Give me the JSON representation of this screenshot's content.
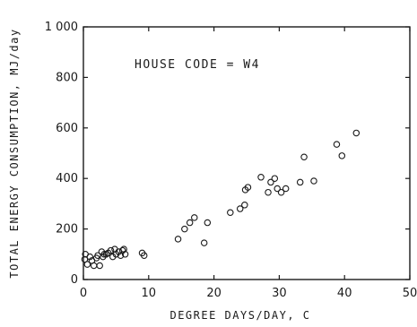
{
  "chart_data": {
    "type": "scatter",
    "title": "",
    "annotation": "HOUSE CODE = W4",
    "xlabel": "DEGREE DAYS/DAY, C",
    "ylabel": "TOTAL ENERGY CONSUMPTION, MJ/day",
    "xlim": [
      0,
      50
    ],
    "ylim": [
      0,
      1000
    ],
    "x_ticks": [
      0,
      10,
      20,
      30,
      40,
      50
    ],
    "y_ticks": [
      0,
      200,
      400,
      600,
      800,
      1000
    ],
    "x_tick_labels": [
      "0",
      "10",
      "20",
      "30",
      "40",
      "50"
    ],
    "y_tick_labels": [
      "0",
      "200",
      "400",
      "600",
      "800",
      "1 000"
    ],
    "grid": false,
    "series": [
      {
        "marker": "open-circle",
        "points": [
          [
            0.2,
            80
          ],
          [
            0.3,
            100
          ],
          [
            0.6,
            60
          ],
          [
            1.0,
            90
          ],
          [
            1.3,
            75
          ],
          [
            1.6,
            55
          ],
          [
            2.0,
            85
          ],
          [
            2.2,
            95
          ],
          [
            2.5,
            55
          ],
          [
            2.8,
            110
          ],
          [
            3.0,
            90
          ],
          [
            3.2,
            100
          ],
          [
            3.5,
            100
          ],
          [
            3.8,
            105
          ],
          [
            4.2,
            115
          ],
          [
            4.5,
            90
          ],
          [
            4.8,
            120
          ],
          [
            5.0,
            100
          ],
          [
            5.4,
            110
          ],
          [
            5.7,
            95
          ],
          [
            6.0,
            115
          ],
          [
            6.2,
            120
          ],
          [
            6.4,
            100
          ],
          [
            9.0,
            105
          ],
          [
            9.3,
            95
          ],
          [
            14.5,
            160
          ],
          [
            15.5,
            200
          ],
          [
            16.3,
            225
          ],
          [
            17.0,
            245
          ],
          [
            18.5,
            145
          ],
          [
            19.0,
            225
          ],
          [
            22.5,
            265
          ],
          [
            24.0,
            280
          ],
          [
            24.7,
            295
          ],
          [
            24.8,
            355
          ],
          [
            25.2,
            365
          ],
          [
            27.2,
            405
          ],
          [
            28.3,
            345
          ],
          [
            28.7,
            385
          ],
          [
            29.3,
            400
          ],
          [
            29.7,
            360
          ],
          [
            30.3,
            345
          ],
          [
            31.0,
            360
          ],
          [
            33.2,
            385
          ],
          [
            33.8,
            485
          ],
          [
            35.3,
            390
          ],
          [
            38.8,
            535
          ],
          [
            39.6,
            490
          ],
          [
            41.8,
            580
          ]
        ]
      }
    ]
  }
}
